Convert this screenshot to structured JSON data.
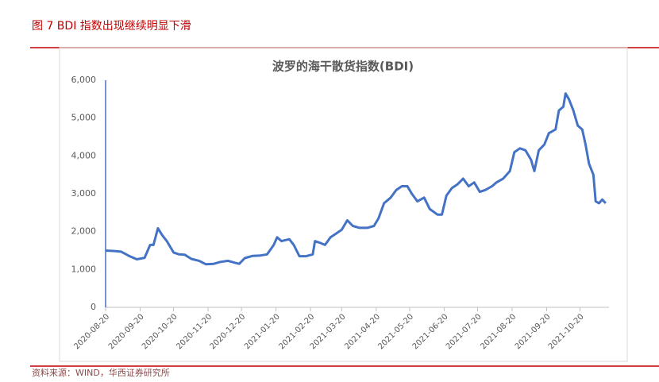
{
  "header": {
    "title": "图 7  BDI 指数出现继续明显下滑"
  },
  "footer": {
    "source": "资料来源：WIND，华西证券研究所"
  },
  "chart_data": {
    "type": "line",
    "title": "波罗的海干散货指数(BDI)",
    "x": [
      "2020-08-20",
      "2020-08-27",
      "2020-09-03",
      "2020-09-10",
      "2020-09-17",
      "2020-09-24",
      "2020-09-29",
      "2020-10-02",
      "2020-10-06",
      "2020-10-10",
      "2020-10-14",
      "2020-10-20",
      "2020-10-25",
      "2020-10-30",
      "2020-11-05",
      "2020-11-12",
      "2020-11-18",
      "2020-11-25",
      "2020-12-01",
      "2020-12-08",
      "2020-12-14",
      "2020-12-18",
      "2020-12-23",
      "2020-12-30",
      "2021-01-06",
      "2021-01-12",
      "2021-01-18",
      "2021-01-21",
      "2021-01-25",
      "2021-02-01",
      "2021-02-05",
      "2021-02-10",
      "2021-02-16",
      "2021-02-22",
      "2021-02-24",
      "2021-03-01",
      "2021-03-05",
      "2021-03-10",
      "2021-03-15",
      "2021-03-20",
      "2021-03-25",
      "2021-03-30",
      "2021-04-05",
      "2021-04-12",
      "2021-04-18",
      "2021-04-22",
      "2021-04-27",
      "2021-05-03",
      "2021-05-08",
      "2021-05-13",
      "2021-05-18",
      "2021-05-22",
      "2021-05-27",
      "2021-06-02",
      "2021-06-07",
      "2021-06-14",
      "2021-06-18",
      "2021-06-22",
      "2021-06-27",
      "2021-07-02",
      "2021-07-07",
      "2021-07-12",
      "2021-07-17",
      "2021-07-22",
      "2021-07-27",
      "2021-08-02",
      "2021-08-06",
      "2021-08-12",
      "2021-08-18",
      "2021-08-22",
      "2021-08-27",
      "2021-09-01",
      "2021-09-06",
      "2021-09-09",
      "2021-09-13",
      "2021-09-18",
      "2021-09-22",
      "2021-09-28",
      "2021-10-01",
      "2021-10-05",
      "2021-10-07",
      "2021-10-10",
      "2021-10-14",
      "2021-10-18",
      "2021-10-22",
      "2021-10-25",
      "2021-10-28",
      "2021-11-01",
      "2021-11-03",
      "2021-11-06",
      "2021-11-09",
      "2021-11-12"
    ],
    "series": [
      {
        "name": "BDI",
        "color": "#4472c4",
        "values": [
          1500,
          1490,
          1470,
          1360,
          1270,
          1310,
          1650,
          1650,
          2090,
          1900,
          1750,
          1450,
          1400,
          1390,
          1280,
          1230,
          1140,
          1150,
          1200,
          1230,
          1180,
          1150,
          1300,
          1360,
          1370,
          1400,
          1650,
          1850,
          1750,
          1800,
          1650,
          1350,
          1350,
          1400,
          1750,
          1700,
          1650,
          1850,
          1950,
          2050,
          2300,
          2150,
          2100,
          2100,
          2150,
          2350,
          2750,
          2900,
          3100,
          3200,
          3200,
          3000,
          2800,
          2900,
          2600,
          2450,
          2450,
          2950,
          3150,
          3250,
          3400,
          3200,
          3300,
          3050,
          3100,
          3200,
          3300,
          3400,
          3600,
          4100,
          4200,
          4150,
          3900,
          3600,
          4150,
          4300,
          4600,
          4700,
          5200,
          5300,
          5650,
          5500,
          5200,
          4800,
          4700,
          4300,
          3800,
          3500,
          2800,
          2750,
          2850,
          2750
        ]
      }
    ],
    "xlim": [
      "2020-08-20",
      "2021-11-15"
    ],
    "xticks": [
      "2020-08-20",
      "2020-09-20",
      "2020-10-20",
      "2020-11-20",
      "2020-12-20",
      "2021-01-20",
      "2021-02-20",
      "2021-03-20",
      "2021-04-20",
      "2021-05-20",
      "2021-06-20",
      "2021-07-20",
      "2021-08-20",
      "2021-09-20",
      "2021-10-20"
    ],
    "ylim": [
      0,
      6000
    ],
    "yticks": [
      0,
      {
        "value": 1000,
        "label": "1,000"
      },
      {
        "value": 2000,
        "label": "2,000"
      },
      {
        "value": 3000,
        "label": "3,000"
      },
      {
        "value": 4000,
        "label": "4,000"
      },
      {
        "value": 5000,
        "label": "5,000"
      },
      {
        "value": 6000,
        "label": "6,000"
      }
    ]
  }
}
